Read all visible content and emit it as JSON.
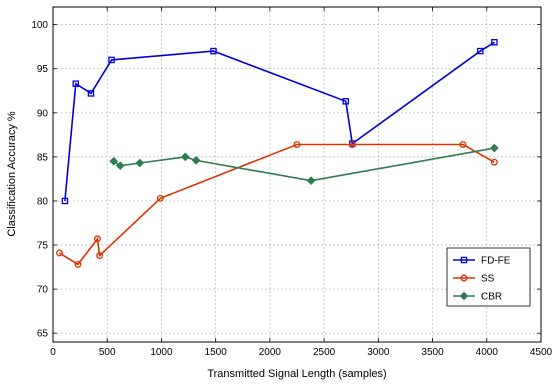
{
  "chart_data": {
    "type": "line",
    "xlabel": "Transmitted Signal Length (samples)",
    "ylabel": "Classification Accuracy %",
    "xlim": [
      0,
      4500
    ],
    "ylim": [
      64,
      102
    ],
    "xticks": [
      0,
      500,
      1000,
      1500,
      2000,
      2500,
      3000,
      3500,
      4000,
      4500
    ],
    "yticks": [
      65,
      70,
      75,
      80,
      85,
      90,
      95,
      100
    ],
    "grid": true,
    "legend_position": "bottom-right",
    "series": [
      {
        "name": "FD-FE",
        "color": "#0000dd",
        "marker": "square",
        "x": [
          110,
          210,
          350,
          540,
          1480,
          2700,
          2760,
          3940,
          4070
        ],
        "y": [
          80.0,
          93.3,
          92.2,
          96.0,
          97.0,
          91.3,
          86.5,
          97.0,
          98.0
        ]
      },
      {
        "name": "SS",
        "color": "#dd3300",
        "marker": "circle",
        "x": [
          60,
          230,
          410,
          430,
          990,
          2250,
          2760,
          3780,
          4070
        ],
        "y": [
          74.1,
          72.8,
          75.7,
          73.8,
          80.3,
          86.4,
          86.4,
          86.4,
          84.4
        ]
      },
      {
        "name": "CBR",
        "color": "#2e7d4f",
        "marker": "diamond",
        "x": [
          560,
          620,
          800,
          1220,
          1320,
          2380,
          4070
        ],
        "y": [
          84.5,
          84.0,
          84.3,
          85.0,
          84.6,
          82.3,
          86.0
        ]
      }
    ]
  }
}
